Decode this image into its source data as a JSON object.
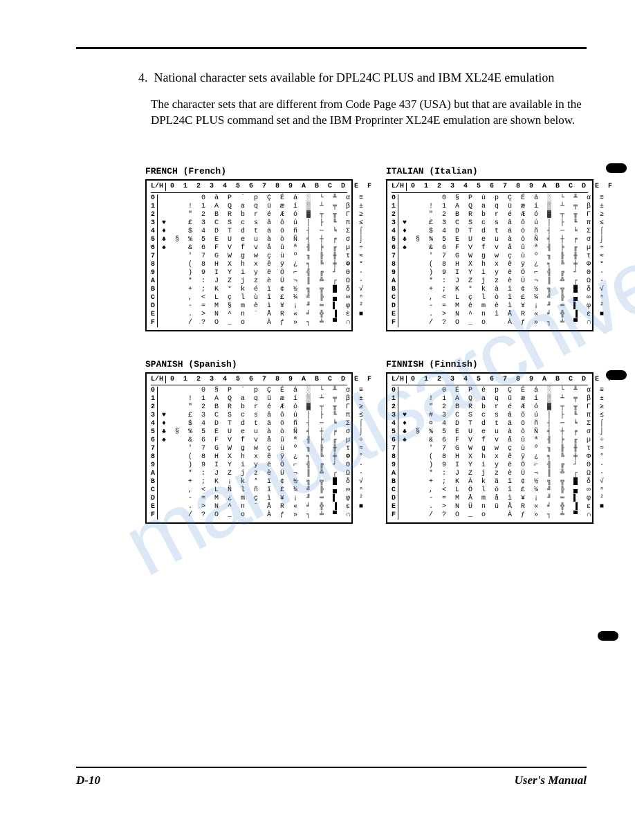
{
  "colors": {
    "text": "#000000",
    "background": "#ffffff",
    "watermark": "rgba(60,130,200,0.18)"
  },
  "heading": {
    "number": "4.",
    "text": "National character sets available for DPL24C PLUS and IBM XL24E emulation"
  },
  "paragraph": "The character sets that are different from Code Page 437 (USA) but that are available in the DPL24C PLUS command set and the IBM Proprinter XL24E emulation are shown below.",
  "charsets": {
    "column_header": "0 1 2 3 4 5 6 7 8 9 A B C D E F",
    "row_labels": [
      "0",
      "1",
      "2",
      "3",
      "4",
      "5",
      "6",
      "7",
      "8",
      "9",
      "A",
      "B",
      "C",
      "D",
      "E",
      "F"
    ],
    "lh_label": "L/H",
    "tables": [
      {
        "title": "FRENCH (French)",
        "rows": [
          "      0 à P ` p Ç É á ░ └ ╨ α ≡",
          "    ! 1 A Q a q ü æ í ▒ ┴ ╤ β ±",
          "    \" 2 B R b r é Æ ó ▓ ┬ ╥ Γ ≥",
          "♥   £ 3 C S c s â ô ú │ ├ ╙ π ≤",
          "♦   $ 4 D T d t ä ö ñ ┤ ─ ╘ Σ ⌠",
          "♣ § % 5 E U e u à ò Ñ ╡ ┼ ╒ σ ⌡",
          "♠   & 6 F V f v å û ª ╢ ╞ ╓ µ ÷",
          "    ' 7 G W g w ç ù º ╖ ╟ ╫ τ ≈",
          "    ( 8 H X h x ê ÿ ¿ ╕ ╚ ╪ Φ °",
          "    ) 9 I Y i y ë Ö ⌐ ╣ ╔ ┘ Θ ∙",
          "    * : J Z j z è Ü ¬ ║ ╩ ┌ Ω ·",
          "    + ; K ° k é ï ¢ ½ ╗ ╦ █ δ √",
          "    , < L ç l ù î £ ¼ ╝ ╠ ▄ ∞ ⁿ",
          "    - = M § m è ì ¥ ¡ ╜ ═ ▌ φ ²",
          "    . > N ^ n ¨ Å R « ╛ ╬ ▐ ε ■",
          "    / ? O _ o   À ƒ » ┐ ╧ ▀ ∩  "
        ]
      },
      {
        "title": "ITALIAN (Italian)",
        "rows": [
          "      0 § P ù p Ç É á ░ └ ╨ α ≡",
          "    ! 1 A Q a q ü æ í ▒ ┴ ╤ β ±",
          "    \" 2 B R b r é Æ ó ▓ ┬ ╥ Γ ≥",
          "♥   £ 3 C S c s â ô ú │ ├ ╙ π ≤",
          "♦   $ 4 D T d t ä ö ñ ┤ ─ ╘ Σ ⌠",
          "♣ § % 5 E U e u à ò Ñ ╡ ┼ ╒ σ ⌡",
          "♠   & 6 F V f v å û ª ╢ ╞ ╓ µ ÷",
          "    ' 7 G W g w ç ù º ╖ ╟ ╫ τ ≈",
          "    ( 8 H X h x ê ÿ ¿ ╕ ╚ ╪ Φ °",
          "    ) 9 I Y i y ë Ö ⌐ ╣ ╔ ┘ Θ ∙",
          "    * : J Z j z è Ü ¬ ║ ╩ ┌ Ω ·",
          "    + ; K ° k à ï ¢ ½ ╗ ╦ █ δ √",
          "    , < L ç l ò î £ ¼ ╝ ╠ ▄ ∞ ⁿ",
          "    - = M é m è ì ¥ ¡ ╜ ═ ▌ φ ²",
          "    . > N ^ n ì Å R « ╛ ╬ ▐ ε ■",
          "    / ? O _ o   À ƒ » ┐ ╧ ▀ ∩  "
        ]
      },
      {
        "title": "SPANISH (Spanish)",
        "rows": [
          "      0 § P ` p Ç É á ░ └ ╨ α ≡",
          "    ! 1 A Q a q ü æ í ▒ ┴ ╤ β ±",
          "    \" 2 B R b r é Æ ó ▓ ┬ ╥ Γ ≥",
          "♥   £ 3 C S c s â ô ú │ ├ ╙ π ≤",
          "♦   $ 4 D T d t ä ö ñ ┤ ─ ╘ Σ ⌠",
          "♣ § % 5 E U e u à ò Ñ ╡ ┼ ╒ σ ⌡",
          "♠   & 6 F V f v å û ª ╢ ╞ ╓ µ ÷",
          "    ' 7 G W g w ç ù º ╖ ╟ ╫ τ ≈",
          "    ( 8 H X h x ê ÿ ¿ ╕ ╚ ╪ Φ °",
          "    ) 9 I Y i y ë Ö ⌐ ╣ ╔ ┘ Θ ∙",
          "    * : J Z j z è Ü ¬ ║ ╩ ┌ Ω ·",
          "    + ; K ¡ k ° ï ¢ ½ ╗ ╦ █ δ √",
          "    , < L Ñ l ñ î £ ¼ ╝ ╠ ▄ ∞ ⁿ",
          "    - = M ¿ m ç ì ¥ ¡ ╜ ═ ▌ φ ²",
          "    . > N ^ n ¨ Å R « ╛ ╬ ▐ ε ■",
          "    / ? O _ o   À ƒ » ┐ ╧ ▀ ∩  "
        ]
      },
      {
        "title": "FINNISH (Finnish)",
        "rows": [
          "      0 É P é p Ç É á ░ └ ╨ α ≡",
          "    ! 1 A Q a q ü æ í ▒ ┴ ╤ β ±",
          "    \" 2 B R b r é Æ ó ▓ ┬ ╥ Γ ≥",
          "♥   # 3 C S c s â ô ú │ ├ ╙ π ≤",
          "♦   ¤ 4 D T d t ä ö ñ ┤ ─ ╘ Σ ⌠",
          "♣ § % 5 E U e u à ò Ñ ╡ ┼ ╒ σ ⌡",
          "♠   & 6 F V f v å û ª ╢ ╞ ╓ µ ÷",
          "    ' 7 G W g w ç ù º ╖ ╟ ╫ τ ≈",
          "    ( 8 H X h x ê ÿ ¿ ╕ ╚ ╪ Φ °",
          "    ) 9 I Y i y ë Ö ⌐ ╣ ╔ ┘ Θ ∙",
          "    * : J Z j z è Ü ¬ ║ ╩ ┌ Ω ·",
          "    + ; K Ä k ä ï ¢ ½ ╗ ╦ █ δ √",
          "    , < L Ö l ö î £ ¼ ╝ ╠ ▄ ∞ ⁿ",
          "    - = M Å m å ì ¥ ¡ ╜ ═ ▌ φ ²",
          "    . > N Ü n ü Å R « ╛ ╬ ▐ ε ■",
          "    / ? O _ o   À ƒ » ┐ ╧ ▀ ∩  "
        ]
      }
    ]
  },
  "footer": {
    "left": "D-10",
    "right": "User's Manual"
  },
  "watermark_text": "manualsarchive"
}
